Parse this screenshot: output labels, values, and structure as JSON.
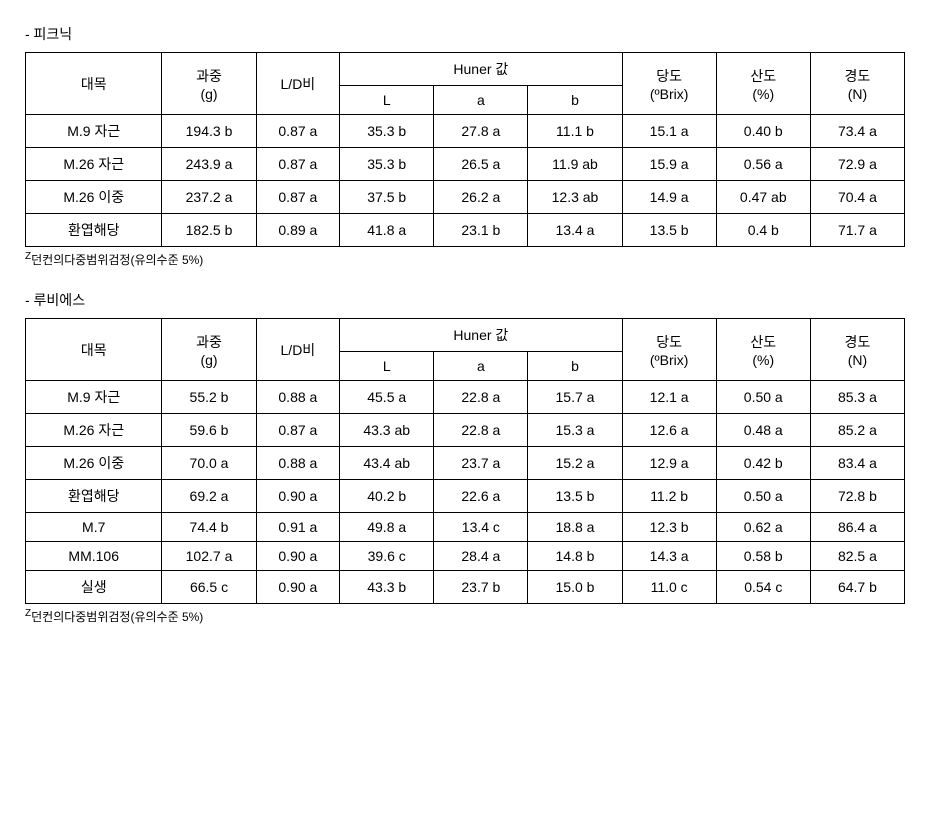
{
  "tables": [
    {
      "title": "- 피크닉",
      "footnote_prefix": "Z",
      "footnote": "던컨의다중범위검정(유의수준 5%)",
      "headers": {
        "rootstock": "대목",
        "weight_line1": "과중",
        "weight_line2": "(g)",
        "ld": "L/D비",
        "huner_top": "Huner 값",
        "huner_L": "L",
        "huner_a": "a",
        "huner_b": "b",
        "brix_line1": "당도",
        "brix_line2": "(ºBrix)",
        "acid_line1": "산도",
        "acid_line2": "(%)",
        "firm_line1": "경도",
        "firm_line2": "(N)"
      },
      "rows": [
        {
          "rootstock": "M.9 자근",
          "weight": "194.3 b",
          "ld": "0.87 a",
          "L": "35.3 b",
          "a": "27.8 a",
          "b": "11.1 b",
          "brix": "15.1 a",
          "acid": "0.40 b",
          "firm": "73.4 a"
        },
        {
          "rootstock": "M.26 자근",
          "weight": "243.9 a",
          "ld": "0.87 a",
          "L": "35.3 b",
          "a": "26.5 a",
          "b": "11.9 ab",
          "brix": "15.9 a",
          "acid": "0.56 a",
          "firm": "72.9 a"
        },
        {
          "rootstock": "M.26 이중",
          "weight": "237.2 a",
          "ld": "0.87 a",
          "L": "37.5 b",
          "a": "26.2 a",
          "b": "12.3 ab",
          "brix": "14.9 a",
          "acid": "0.47 ab",
          "firm": "70.4 a"
        },
        {
          "rootstock": "환엽해당",
          "weight": "182.5 b",
          "ld": "0.89 a",
          "L": "41.8 a",
          "a": "23.1 b",
          "b": "13.4 a",
          "brix": "13.5 b",
          "acid": "0.4 b",
          "firm": "71.7 a"
        }
      ]
    },
    {
      "title": "- 루비에스",
      "footnote_prefix": "Z",
      "footnote": "던컨의다중범위검정(유의수준 5%)",
      "headers": {
        "rootstock": "대목",
        "weight_line1": "과중",
        "weight_line2": "(g)",
        "ld": "L/D비",
        "huner_top": "Huner 값",
        "huner_L": "L",
        "huner_a": "a",
        "huner_b": "b",
        "brix_line1": "당도",
        "brix_line2": "(ºBrix)",
        "acid_line1": "산도",
        "acid_line2": "(%)",
        "firm_line1": "경도",
        "firm_line2": "(N)"
      },
      "rows": [
        {
          "rootstock": "M.9 자근",
          "weight": "55.2 b",
          "ld": "0.88 a",
          "L": "45.5 a",
          "a": "22.8 a",
          "b": "15.7 a",
          "brix": "12.1 a",
          "acid": "0.50 a",
          "firm": "85.3 a"
        },
        {
          "rootstock": "M.26 자근",
          "weight": "59.6 b",
          "ld": "0.87 a",
          "L": "43.3 ab",
          "a": "22.8 a",
          "b": "15.3 a",
          "brix": "12.6 a",
          "acid": "0.48 a",
          "firm": "85.2 a"
        },
        {
          "rootstock": "M.26 이중",
          "weight": "70.0 a",
          "ld": "0.88 a",
          "L": "43.4 ab",
          "a": "23.7 a",
          "b": "15.2 a",
          "brix": "12.9 a",
          "acid": "0.42 b",
          "firm": "83.4 a"
        },
        {
          "rootstock": "환엽해당",
          "weight": "69.2 a",
          "ld": "0.90 a",
          "L": "40.2 b",
          "a": "22.6 a",
          "b": "13.5 b",
          "brix": "11.2 b",
          "acid": "0.50 a",
          "firm": "72.8 b"
        },
        {
          "rootstock": "M.7",
          "weight": "74.4 b",
          "ld": "0.91 a",
          "L": "49.8 a",
          "a": "13.4 c",
          "b": "18.8 a",
          "brix": "12.3 b",
          "acid": "0.62 a",
          "firm": "86.4 a"
        },
        {
          "rootstock": "MM.106",
          "weight": "102.7 a",
          "ld": "0.90 a",
          "L": "39.6 c",
          "a": "28.4 a",
          "b": "14.8 b",
          "brix": "14.3 a",
          "acid": "0.58 b",
          "firm": "82.5 a"
        },
        {
          "rootstock": "실생",
          "weight": "66.5 c",
          "ld": "0.90 a",
          "L": "43.3 b",
          "a": "23.7 b",
          "b": "15.0 b",
          "brix": "11.0 c",
          "acid": "0.54 c",
          "firm": "64.7 b"
        }
      ]
    }
  ]
}
